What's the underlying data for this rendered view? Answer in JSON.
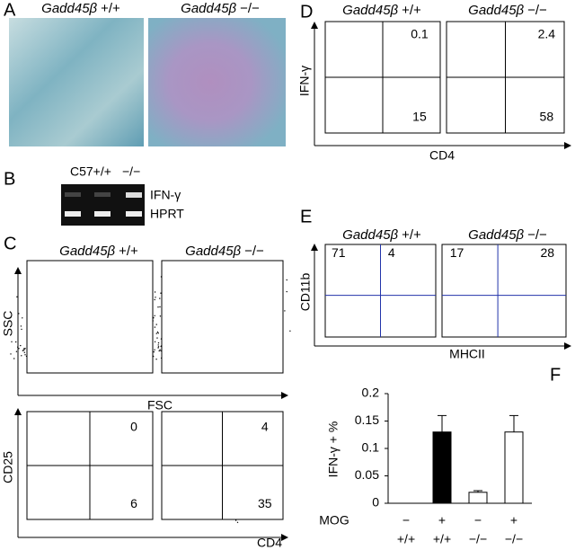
{
  "panels": {
    "A": {
      "letter": "A",
      "titles": [
        {
          "gene": "Gadd45β",
          "genotype": "+/+"
        },
        {
          "gene": "Gadd45β",
          "genotype": "−/−"
        }
      ]
    },
    "B": {
      "letter": "B",
      "lane_wt": "C57+/+",
      "lane_ko": "−/−",
      "bands": [
        "IFN-γ",
        "HPRT"
      ]
    },
    "C": {
      "letter": "C",
      "titles": [
        {
          "gene": "Gadd45β",
          "genotype": "+/+"
        },
        {
          "gene": "Gadd45β",
          "genotype": "−/−"
        }
      ],
      "scatter_y": "SSC",
      "scatter_x": "FSC",
      "marker_y": "CD25",
      "marker_x": "CD4",
      "quadrants": [
        {
          "upper_right": 0,
          "lower_right": 6
        },
        {
          "upper_right": 4,
          "lower_right": 35
        }
      ]
    },
    "D": {
      "letter": "D",
      "titles": [
        {
          "gene": "Gadd45β",
          "genotype": "+/+"
        },
        {
          "gene": "Gadd45β",
          "genotype": "−/−"
        }
      ],
      "y_axis": "IFN-γ",
      "x_axis": "CD4",
      "quadrants": [
        {
          "upper_right": 0.1,
          "lower_right": 15
        },
        {
          "upper_right": 2.4,
          "lower_right": 58
        }
      ]
    },
    "E": {
      "letter": "E",
      "titles": [
        {
          "gene": "Gadd45β",
          "genotype": "+/+"
        },
        {
          "gene": "Gadd45β",
          "genotype": "−/−"
        }
      ],
      "y_axis": "CD11b",
      "x_axis": "MHCII",
      "quadrants": [
        {
          "upper_left": 71,
          "upper_right": 4
        },
        {
          "upper_left": 17,
          "upper_right": 28
        }
      ]
    }
  },
  "chart_data": {
    "type": "bar",
    "label": "F",
    "ylabel": "IFN-γ + %",
    "category_label": "MOG",
    "categories": [
      "−",
      "+",
      "−",
      "+"
    ],
    "groups": [
      "+/+",
      "+/+",
      "−/−",
      "−/−"
    ],
    "values": [
      0,
      0.13,
      0.02,
      0.13
    ],
    "errors": [
      null,
      0.03,
      0.003,
      0.03
    ],
    "colors": [
      "#ffffff",
      "#000000",
      "#ffffff",
      "#ffffff"
    ],
    "ylim": [
      0,
      0.2
    ],
    "yticks": [
      0,
      0.05,
      0.1,
      0.15,
      0.2
    ]
  }
}
